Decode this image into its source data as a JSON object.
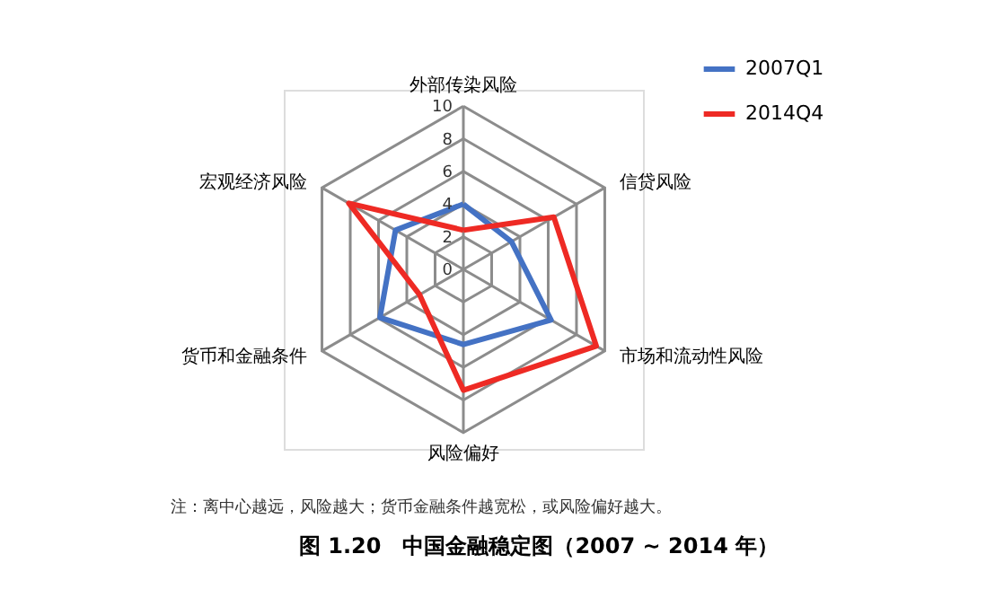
{
  "chart_data": {
    "type": "radar",
    "title": "图 1.20　中国金融稳定图（2007 ~ 2014 年）",
    "annotations": [
      "注：离中心越远，风险越大；货币金融条件越宽松，或风险偏好越大。"
    ],
    "categories": [
      "外部传染风险",
      "信贷风险",
      "市场和流动性风险",
      "风险偏好",
      "货币和金融条件",
      "宏观经济风险"
    ],
    "series": [
      {
        "name": "2007Q1",
        "color": "#4472c4",
        "values": [
          4.0,
          3.4,
          6.2,
          4.6,
          5.9,
          4.8
        ]
      },
      {
        "name": "2014Q4",
        "color": "#ee2a24",
        "values": [
          2.4,
          6.4,
          9.4,
          7.4,
          3.1,
          8.1
        ]
      }
    ],
    "ylim": [
      0,
      10
    ],
    "yticks": [
      0,
      2,
      4,
      6,
      8,
      10
    ],
    "grid": true,
    "legend": "top right"
  }
}
